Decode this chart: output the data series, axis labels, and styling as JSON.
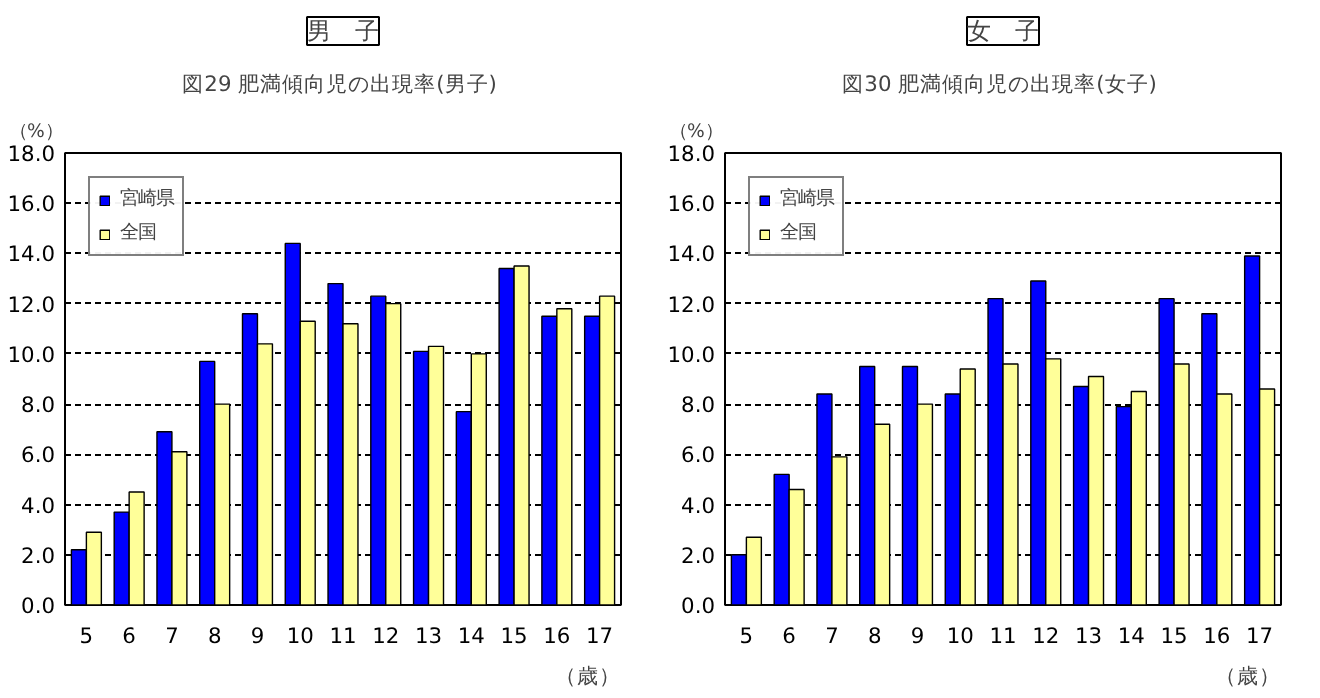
{
  "chart_data": [
    {
      "type": "bar",
      "subtitle": "男　子",
      "title": "図29  肥満傾向児の出現率(男子)",
      "ylabel": "（%）",
      "xlabel": "（歳）",
      "categories": [
        "5",
        "6",
        "7",
        "8",
        "9",
        "10",
        "11",
        "12",
        "13",
        "14",
        "15",
        "16",
        "17"
      ],
      "series": [
        {
          "name": "宮崎県",
          "color": "#0000ff",
          "values": [
            2.2,
            3.7,
            6.9,
            9.7,
            11.6,
            14.4,
            12.8,
            12.3,
            10.1,
            7.7,
            13.4,
            11.5,
            11.5
          ]
        },
        {
          "name": "全国",
          "color": "#ffff99",
          "values": [
            2.9,
            4.5,
            6.1,
            8.0,
            10.4,
            11.3,
            11.2,
            12.0,
            10.3,
            10.0,
            13.5,
            11.8,
            12.3
          ]
        }
      ],
      "ylim": [
        0,
        18
      ],
      "yticks": [
        {
          "value": 0,
          "label": "0.0"
        },
        {
          "value": 2,
          "label": "2.0"
        },
        {
          "value": 4,
          "label": "4.0"
        },
        {
          "value": 6,
          "label": "6.0"
        },
        {
          "value": 8,
          "label": "8.0"
        },
        {
          "value": 10,
          "label": "10.0"
        },
        {
          "value": 12,
          "label": "12.0"
        },
        {
          "value": 14,
          "label": "14.0"
        },
        {
          "value": 16,
          "label": "16.0"
        },
        {
          "value": 18,
          "label": "18.0"
        }
      ],
      "grid": "y",
      "legend": "top left"
    },
    {
      "type": "bar",
      "subtitle": "女　子",
      "title": "図30  肥満傾向児の出現率(女子)",
      "ylabel": "（%）",
      "xlabel": "（歳）",
      "categories": [
        "5",
        "6",
        "7",
        "8",
        "9",
        "10",
        "11",
        "12",
        "13",
        "14",
        "15",
        "16",
        "17"
      ],
      "series": [
        {
          "name": "宮崎県",
          "color": "#0000ff",
          "values": [
            2.0,
            5.2,
            8.4,
            9.5,
            9.5,
            8.4,
            12.2,
            12.9,
            8.7,
            7.9,
            12.2,
            11.6,
            13.9
          ]
        },
        {
          "name": "全国",
          "color": "#ffff99",
          "values": [
            2.7,
            4.6,
            5.9,
            7.2,
            8.0,
            9.4,
            9.6,
            9.8,
            9.1,
            8.5,
            9.6,
            8.4,
            8.6
          ]
        }
      ],
      "ylim": [
        0,
        18
      ],
      "yticks": [
        {
          "value": 0,
          "label": "0.0"
        },
        {
          "value": 2,
          "label": "2.0"
        },
        {
          "value": 4,
          "label": "4.0"
        },
        {
          "value": 6,
          "label": "6.0"
        },
        {
          "value": 8,
          "label": "8.0"
        },
        {
          "value": 10,
          "label": "10.0"
        },
        {
          "value": 12,
          "label": "12.0"
        },
        {
          "value": 14,
          "label": "14.0"
        },
        {
          "value": 16,
          "label": "16.0"
        },
        {
          "value": 18,
          "label": "18.0"
        }
      ],
      "grid": "y",
      "legend": "top left"
    }
  ]
}
